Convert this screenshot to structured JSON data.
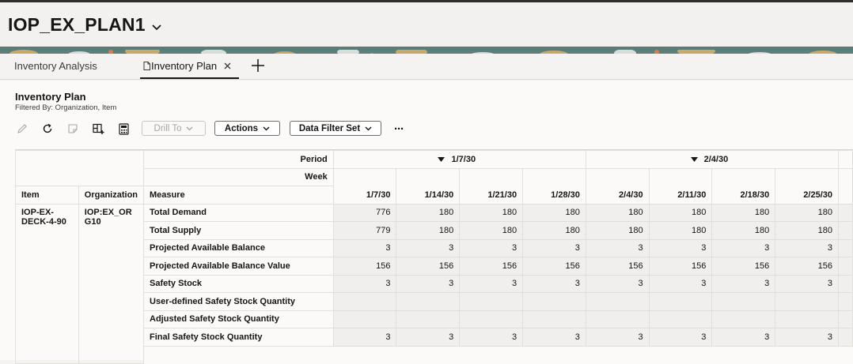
{
  "app": {
    "title": "IOP_EX_PLAN1"
  },
  "tabs": [
    {
      "label": "Inventory Analysis"
    },
    {
      "label": "Inventory Plan"
    }
  ],
  "page": {
    "title": "Inventory Plan",
    "filter_text": "Filtered By: Organization, Item"
  },
  "toolbar": {
    "drill_label": "Drill To",
    "actions_label": "Actions",
    "filter_set_label": "Data Filter Set",
    "more_label": "···"
  },
  "icons": [
    "pencil-icon",
    "refresh-icon",
    "note-icon",
    "layout-icon",
    "calculator-icon",
    "chevron-down-icon",
    "close-icon",
    "plus-icon",
    "document-icon"
  ],
  "grid": {
    "period_label": "Period",
    "week_label": "Week",
    "headers": {
      "item": "Item",
      "organization": "Organization",
      "measure": "Measure"
    },
    "periods": [
      "1/7/30",
      "2/4/30"
    ],
    "weeks": [
      "1/7/30",
      "1/14/30",
      "1/21/30",
      "1/28/30",
      "2/4/30",
      "2/11/30",
      "2/18/30",
      "2/25/30"
    ],
    "item": "IOP-EX-DECK-4-90",
    "organization": "IOP:EX_ORG10",
    "rows": [
      {
        "measure": "Total Demand",
        "values": [
          "776",
          "180",
          "180",
          "180",
          "180",
          "180",
          "180",
          "180"
        ]
      },
      {
        "measure": "Total Supply",
        "values": [
          "779",
          "180",
          "180",
          "180",
          "180",
          "180",
          "180",
          "180"
        ]
      },
      {
        "measure": "Projected Available Balance",
        "values": [
          "3",
          "3",
          "3",
          "3",
          "3",
          "3",
          "3",
          "3"
        ]
      },
      {
        "measure": "Projected Available Balance Value",
        "values": [
          "156",
          "156",
          "156",
          "156",
          "156",
          "156",
          "156",
          "156"
        ]
      },
      {
        "measure": "Safety Stock",
        "values": [
          "3",
          "3",
          "3",
          "3",
          "3",
          "3",
          "3",
          "3"
        ]
      },
      {
        "measure": "User-defined Safety Stock Quantity",
        "values": [
          "",
          "",
          "",
          "",
          "",
          "",
          "",
          ""
        ]
      },
      {
        "measure": "Adjusted Safety Stock Quantity",
        "values": [
          "",
          "",
          "",
          "",
          "",
          "",
          "",
          ""
        ]
      },
      {
        "measure": "Final Safety Stock Quantity",
        "values": [
          "3",
          "3",
          "3",
          "3",
          "3",
          "3",
          "3",
          "3"
        ]
      }
    ]
  }
}
